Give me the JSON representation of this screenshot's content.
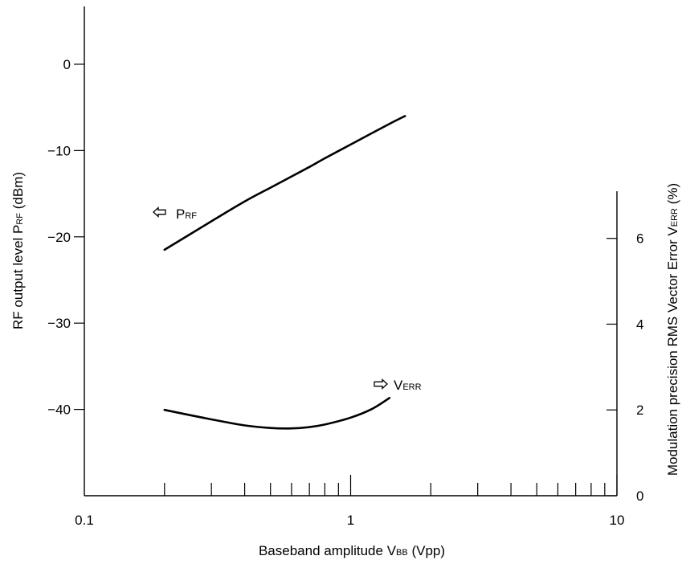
{
  "chart_data": {
    "type": "line",
    "x_axis": {
      "label": "Baseband amplitude V",
      "label_sub": "BB",
      "label_tail": " (Vpp)",
      "scale": "log",
      "range": [
        0.1,
        10
      ],
      "tick_labels": [
        "0.1",
        "1",
        "10"
      ]
    },
    "y_axis_left": {
      "label": "RF output level P",
      "label_sub": "RF",
      "label_tail": " (dBm)",
      "range": [
        -50,
        6.7
      ],
      "ticks": [
        0,
        -10,
        -20,
        -30,
        -40
      ],
      "tick_labels": [
        "0",
        "−10",
        "−20",
        "−30",
        "−40"
      ]
    },
    "y_axis_right": {
      "label": "Modulation precision RMS Vector Error V",
      "label_sub": "ERR",
      "label_tail": " (%)",
      "range": [
        0,
        7.1
      ],
      "ticks": [
        0,
        2,
        4,
        6
      ],
      "tick_labels": [
        "0",
        "2",
        "4",
        "6"
      ]
    },
    "series": [
      {
        "name": "P",
        "name_sub": "RF",
        "axis": "left",
        "arrow": "left",
        "x": [
          0.2,
          0.3,
          0.4,
          0.5,
          0.6,
          0.7,
          0.8,
          1.0,
          1.2,
          1.4,
          1.6
        ],
        "y": [
          -21.5,
          -18.2,
          -15.9,
          -14.3,
          -13.0,
          -11.9,
          -10.9,
          -9.3,
          -8.0,
          -6.9,
          -6.0
        ]
      },
      {
        "name": "V",
        "name_sub": "ERR",
        "axis": "right",
        "arrow": "right",
        "x": [
          0.2,
          0.3,
          0.4,
          0.5,
          0.6,
          0.7,
          0.8,
          1.0,
          1.2,
          1.4
        ],
        "y": [
          2.0,
          1.78,
          1.64,
          1.58,
          1.57,
          1.6,
          1.66,
          1.82,
          2.02,
          2.28
        ]
      }
    ]
  }
}
